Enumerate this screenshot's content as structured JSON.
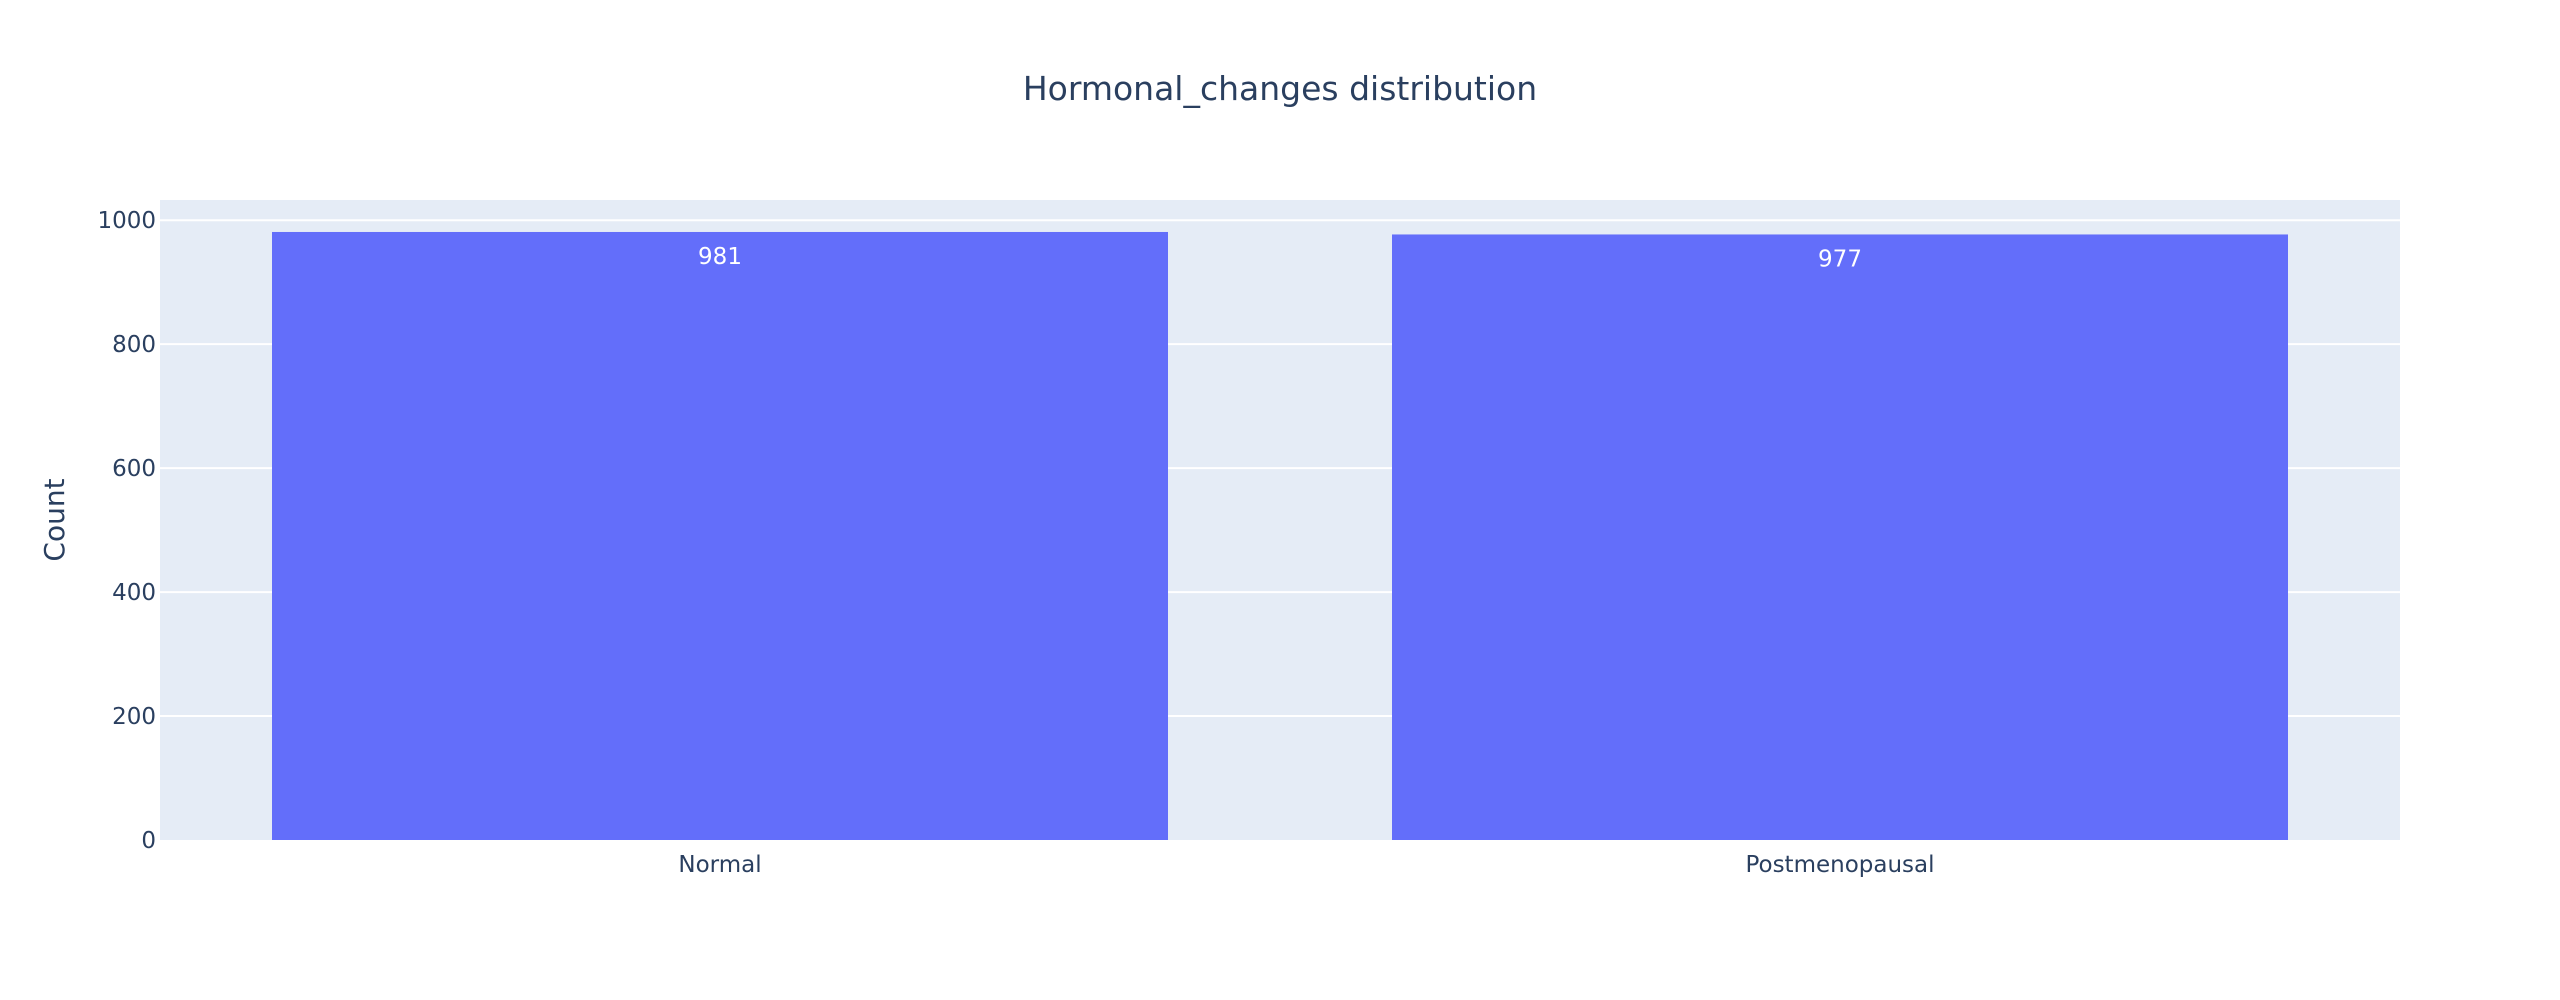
{
  "chart_data": {
    "type": "bar",
    "title": "Hormonal_changes distribution",
    "xlabel": "",
    "ylabel": "Count",
    "categories": [
      "Normal",
      "Postmenopausal"
    ],
    "values": [
      981,
      977
    ],
    "data_labels": [
      "981",
      "977"
    ],
    "y_ticks": [
      0,
      200,
      400,
      600,
      800,
      1000
    ],
    "ylim": [
      0,
      1032.6
    ],
    "grid": true,
    "legend": "none",
    "colors": {
      "bar": "#636efa",
      "plot_bg": "#e5ecf6",
      "grid": "#ffffff",
      "text": "#2a3f5f",
      "bar_label": "#ffffff"
    }
  }
}
